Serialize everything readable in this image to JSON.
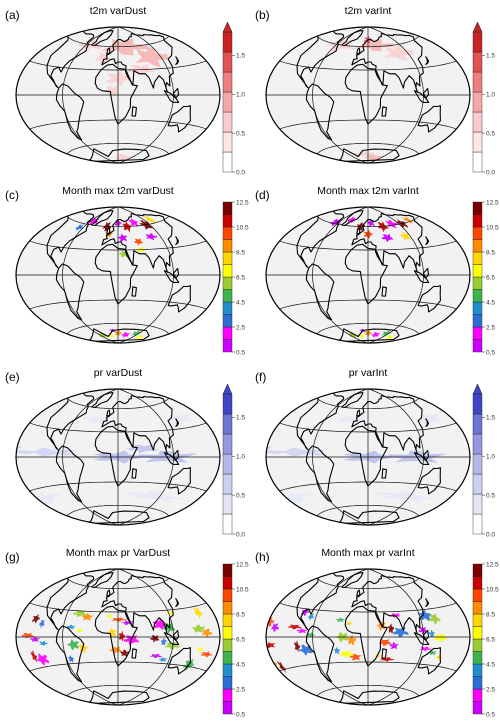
{
  "figure": {
    "panels": [
      {
        "letter": "(a)",
        "title": "t2m varDust",
        "field": "t2m",
        "colorbar": "t2m"
      },
      {
        "letter": "(b)",
        "title": "t2m varInt",
        "field": "t2m",
        "colorbar": "t2m"
      },
      {
        "letter": "(c)",
        "title": "Month max t2m varDust",
        "field": "month_t2m",
        "colorbar": "month"
      },
      {
        "letter": "(d)",
        "title": "Month max t2m varInt",
        "field": "month_t2m",
        "colorbar": "month"
      },
      {
        "letter": "(e)",
        "title": "pr varDust",
        "field": "pr",
        "colorbar": "pr"
      },
      {
        "letter": "(f)",
        "title": "pr varInt",
        "field": "pr",
        "colorbar": "pr"
      },
      {
        "letter": "(g)",
        "title": "Month max pr VarDust",
        "field": "month_pr",
        "colorbar": "month"
      },
      {
        "letter": "(h)",
        "title": "Month max pr varInt",
        "field": "month_pr",
        "colorbar": "month"
      }
    ]
  },
  "chart_data": [
    {
      "type": "heatmap",
      "title": "t2m varDust",
      "projection": "Hammer (global)",
      "colorbar": {
        "ticks": [
          "0.0",
          "0.5",
          "1.0",
          "1.5"
        ],
        "range": [
          0,
          1.8
        ],
        "extend": "max",
        "colors": [
          "#ffffff",
          "#fde6e6",
          "#fbcaca",
          "#f6a7a7",
          "#ef7d7d",
          "#e25252",
          "#c92323"
        ]
      }
    },
    {
      "type": "heatmap",
      "title": "t2m varInt",
      "projection": "Hammer (global)",
      "colorbar": {
        "ticks": [
          "0.0",
          "0.5",
          "1.0",
          "1.5"
        ],
        "range": [
          0,
          1.8
        ],
        "extend": "max",
        "colors": [
          "#ffffff",
          "#fde6e6",
          "#fbcaca",
          "#f6a7a7",
          "#ef7d7d",
          "#e25252",
          "#c92323"
        ]
      }
    },
    {
      "type": "heatmap",
      "title": "Month max t2m varDust",
      "projection": "Hammer (global)",
      "colorbar": {
        "ticks": [
          "0.5",
          "2.5",
          "4.5",
          "6.5",
          "8.5",
          "10.5",
          "12.5"
        ],
        "range": [
          0.5,
          12.5
        ],
        "colors": [
          "#cc00ff",
          "#ff00ff",
          "#2a6fd8",
          "#1f8fd0",
          "#3cb44b",
          "#9acd32",
          "#ffff00",
          "#ffd700",
          "#ff8c00",
          "#ff4500",
          "#c80000",
          "#7a0000"
        ]
      }
    },
    {
      "type": "heatmap",
      "title": "Month max t2m varInt",
      "projection": "Hammer (global)",
      "colorbar": {
        "ticks": [
          "0.5",
          "2.5",
          "4.5",
          "6.5",
          "8.5",
          "10.5",
          "12.5"
        ],
        "range": [
          0.5,
          12.5
        ],
        "colors": [
          "#cc00ff",
          "#ff00ff",
          "#2a6fd8",
          "#1f8fd0",
          "#3cb44b",
          "#9acd32",
          "#ffff00",
          "#ffd700",
          "#ff8c00",
          "#ff4500",
          "#c80000",
          "#7a0000"
        ]
      }
    },
    {
      "type": "heatmap",
      "title": "pr varDust",
      "projection": "Hammer (global)",
      "colorbar": {
        "ticks": [
          "0.0",
          "0.5",
          "1.0",
          "1.5"
        ],
        "range": [
          0,
          1.8
        ],
        "extend": "max",
        "colors": [
          "#ffffff",
          "#e4e6f7",
          "#cdd1f1",
          "#b3b8ea",
          "#9399e0",
          "#6e74d6",
          "#3f45c7"
        ]
      }
    },
    {
      "type": "heatmap",
      "title": "pr varInt",
      "projection": "Hammer (global)",
      "colorbar": {
        "ticks": [
          "0.0",
          "0.5",
          "1.0",
          "1.5"
        ],
        "range": [
          0,
          1.8
        ],
        "extend": "max",
        "colors": [
          "#ffffff",
          "#e4e6f7",
          "#cdd1f1",
          "#b3b8ea",
          "#9399e0",
          "#6e74d6",
          "#3f45c7"
        ]
      }
    },
    {
      "type": "heatmap",
      "title": "Month max pr VarDust",
      "projection": "Hammer (global)",
      "colorbar": {
        "ticks": [
          "0.5",
          "2.5",
          "4.5",
          "6.5",
          "8.5",
          "10.5",
          "12.5"
        ],
        "range": [
          0.5,
          12.5
        ],
        "colors": [
          "#cc00ff",
          "#ff00ff",
          "#2a6fd8",
          "#1f8fd0",
          "#3cb44b",
          "#9acd32",
          "#ffff00",
          "#ffd700",
          "#ff8c00",
          "#ff4500",
          "#c80000",
          "#7a0000"
        ]
      }
    },
    {
      "type": "heatmap",
      "title": "Month max pr varInt",
      "projection": "Hammer (global)",
      "colorbar": {
        "ticks": [
          "0.5",
          "2.5",
          "4.5",
          "6.5",
          "8.5",
          "10.5",
          "12.5"
        ],
        "range": [
          0.5,
          12.5
        ],
        "colors": [
          "#cc00ff",
          "#ff00ff",
          "#2a6fd8",
          "#1f8fd0",
          "#3cb44b",
          "#9acd32",
          "#ffff00",
          "#ffd700",
          "#ff8c00",
          "#ff4500",
          "#c80000",
          "#7a0000"
        ]
      }
    }
  ]
}
